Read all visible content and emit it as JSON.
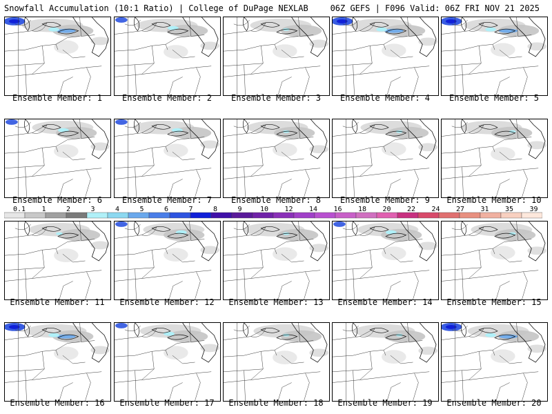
{
  "header": {
    "left": "Snowfall Accumulation (10:1 Ratio) | College of DuPage NEXLAB",
    "right": "06Z GEFS | F096 Valid: 06Z FRI NOV 21 2025"
  },
  "members": [
    {
      "label": "Ensemble Member: 1",
      "snow": "heavy"
    },
    {
      "label": "Ensemble Member: 2",
      "snow": "moderate"
    },
    {
      "label": "Ensemble Member: 3",
      "snow": "light"
    },
    {
      "label": "Ensemble Member: 4",
      "snow": "heavy"
    },
    {
      "label": "Ensemble Member: 5",
      "snow": "heavy"
    },
    {
      "label": "Ensemble Member: 6",
      "snow": "moderate"
    },
    {
      "label": "Ensemble Member: 7",
      "snow": "moderate"
    },
    {
      "label": "Ensemble Member: 8",
      "snow": "light"
    },
    {
      "label": "Ensemble Member: 9",
      "snow": "light"
    },
    {
      "label": "Ensemble Member: 10",
      "snow": "light"
    },
    {
      "label": "Ensemble Member: 11",
      "snow": "light"
    },
    {
      "label": "Ensemble Member: 12",
      "snow": "moderate"
    },
    {
      "label": "Ensemble Member: 13",
      "snow": "light"
    },
    {
      "label": "Ensemble Member: 14",
      "snow": "moderate"
    },
    {
      "label": "Ensemble Member: 15",
      "snow": "light"
    },
    {
      "label": "Ensemble Member: 16",
      "snow": "heavy"
    },
    {
      "label": "Ensemble Member: 17",
      "snow": "moderate"
    },
    {
      "label": "Ensemble Member: 18",
      "snow": "light"
    },
    {
      "label": "Ensemble Member: 19",
      "snow": "light"
    },
    {
      "label": "Ensemble Member: 20",
      "snow": "heavy"
    }
  ],
  "colorbar": {
    "ticks": [
      "0.1",
      "1",
      "2",
      "3",
      "4",
      "5",
      "6",
      "7",
      "8",
      "9",
      "10",
      "12",
      "14",
      "16",
      "18",
      "20",
      "22",
      "24",
      "27",
      "31",
      "35",
      "39"
    ],
    "colors": [
      "#e6e6e6",
      "#c8c8c8",
      "#a0a0a0",
      "#7a7a7a",
      "#b0f0f8",
      "#8cd8f0",
      "#6aa8ec",
      "#4a7ee8",
      "#2e54e0",
      "#1020d8",
      "#4010a8",
      "#5a1a9a",
      "#7022a8",
      "#8a30b8",
      "#a040c8",
      "#b850d0",
      "#c860c8",
      "#d070c0",
      "#e060b0",
      "#c83080",
      "#d84a6a",
      "#e07070",
      "#e89080",
      "#f0b0a0",
      "#f8d0c0",
      "#fde8dc"
    ]
  }
}
